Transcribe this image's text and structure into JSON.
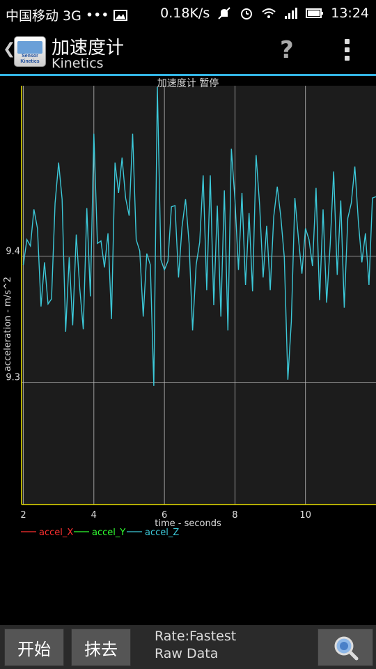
{
  "status_bar": {
    "carrier": "中国移动 3G",
    "dots": "•••",
    "speed": "0.18K/s",
    "time": "13:24",
    "icons": [
      "image-icon",
      "mute-icon",
      "alarm-icon",
      "wifi-icon",
      "signal-icon",
      "battery-icon"
    ]
  },
  "action_bar": {
    "title": "加速度计",
    "subtitle": "Kinetics",
    "app_icon_text": "Sensor Kinetics",
    "help_label": "?",
    "accent_color": "#33b5e5"
  },
  "chart_data": {
    "type": "line",
    "title": "加速度计 暂停",
    "xlabel": "time - seconds",
    "ylabel": "acceleration - m/s^2",
    "xlim": [
      1.95,
      12.0
    ],
    "ylim": [
      9.203,
      9.535
    ],
    "x_ticks": [
      2,
      4,
      6,
      8,
      10
    ],
    "y_ticks": [
      9.3,
      9.4
    ],
    "grid": true,
    "legend_position": "bottom-left",
    "series": [
      {
        "name": "accel_X",
        "color": "#ff3030",
        "points": []
      },
      {
        "name": "accel_Y",
        "color": "#30ff30",
        "points": []
      },
      {
        "name": "accel_Z",
        "color": "#3cc8d8",
        "points": [
          [
            2.0,
            9.393
          ],
          [
            2.1,
            9.413
          ],
          [
            2.2,
            9.408
          ],
          [
            2.3,
            9.437
          ],
          [
            2.4,
            9.422
          ],
          [
            2.5,
            9.36
          ],
          [
            2.6,
            9.395
          ],
          [
            2.7,
            9.362
          ],
          [
            2.8,
            9.366
          ],
          [
            2.9,
            9.442
          ],
          [
            3.0,
            9.474
          ],
          [
            3.1,
            9.445
          ],
          [
            3.2,
            9.34
          ],
          [
            3.3,
            9.399
          ],
          [
            3.4,
            9.345
          ],
          [
            3.5,
            9.417
          ],
          [
            3.6,
            9.374
          ],
          [
            3.7,
            9.342
          ],
          [
            3.8,
            9.438
          ],
          [
            3.9,
            9.368
          ],
          [
            4.0,
            9.497
          ],
          [
            4.1,
            9.41
          ],
          [
            4.2,
            9.412
          ],
          [
            4.3,
            9.391
          ],
          [
            4.4,
            9.418
          ],
          [
            4.5,
            9.35
          ],
          [
            4.6,
            9.474
          ],
          [
            4.7,
            9.45
          ],
          [
            4.8,
            9.478
          ],
          [
            4.9,
            9.446
          ],
          [
            5.0,
            9.432
          ],
          [
            5.1,
            9.497
          ],
          [
            5.2,
            9.413
          ],
          [
            5.3,
            9.404
          ],
          [
            5.4,
            9.352
          ],
          [
            5.5,
            9.402
          ],
          [
            5.6,
            9.393
          ],
          [
            5.7,
            9.297
          ],
          [
            5.8,
            9.534
          ],
          [
            5.9,
            9.397
          ],
          [
            6.0,
            9.389
          ],
          [
            6.1,
            9.396
          ],
          [
            6.2,
            9.439
          ],
          [
            6.3,
            9.44
          ],
          [
            6.4,
            9.383
          ],
          [
            6.5,
            9.423
          ],
          [
            6.6,
            9.445
          ],
          [
            6.7,
            9.41
          ],
          [
            6.8,
            9.341
          ],
          [
            6.9,
            9.393
          ],
          [
            7.0,
            9.411
          ],
          [
            7.1,
            9.464
          ],
          [
            7.2,
            9.373
          ],
          [
            7.3,
            9.464
          ],
          [
            7.4,
            9.361
          ],
          [
            7.5,
            9.44
          ],
          [
            7.6,
            9.352
          ],
          [
            7.7,
            9.452
          ],
          [
            7.8,
            9.341
          ],
          [
            7.9,
            9.485
          ],
          [
            8.0,
            9.445
          ],
          [
            8.1,
            9.389
          ],
          [
            8.2,
            9.45
          ],
          [
            8.3,
            9.377
          ],
          [
            8.4,
            9.434
          ],
          [
            8.5,
            9.372
          ],
          [
            8.6,
            9.48
          ],
          [
            8.7,
            9.44
          ],
          [
            8.8,
            9.383
          ],
          [
            8.9,
            9.424
          ],
          [
            9.0,
            9.373
          ],
          [
            9.1,
            9.431
          ],
          [
            9.2,
            9.455
          ],
          [
            9.3,
            9.431
          ],
          [
            9.4,
            9.399
          ],
          [
            9.5,
            9.302
          ],
          [
            9.6,
            9.348
          ],
          [
            9.7,
            9.446
          ],
          [
            9.8,
            9.414
          ],
          [
            9.9,
            9.386
          ],
          [
            10.0,
            9.422
          ],
          [
            10.1,
            9.413
          ],
          [
            10.2,
            9.392
          ],
          [
            10.3,
            9.454
          ],
          [
            10.4,
            9.365
          ],
          [
            10.5,
            9.437
          ],
          [
            10.6,
            9.363
          ],
          [
            10.7,
            9.409
          ],
          [
            10.8,
            9.467
          ],
          [
            10.9,
            9.385
          ],
          [
            11.0,
            9.444
          ],
          [
            11.1,
            9.359
          ],
          [
            11.2,
            9.43
          ],
          [
            11.3,
            9.442
          ],
          [
            11.4,
            9.471
          ],
          [
            11.5,
            9.427
          ],
          [
            11.6,
            9.395
          ],
          [
            11.7,
            9.418
          ],
          [
            11.8,
            9.377
          ],
          [
            11.9,
            9.446
          ],
          [
            12.0,
            9.447
          ]
        ]
      }
    ]
  },
  "bottom_bar": {
    "start_label": "开始",
    "clear_label": "抹去",
    "rate_label": "Rate:Fastest",
    "mode_label": "Raw Data"
  }
}
